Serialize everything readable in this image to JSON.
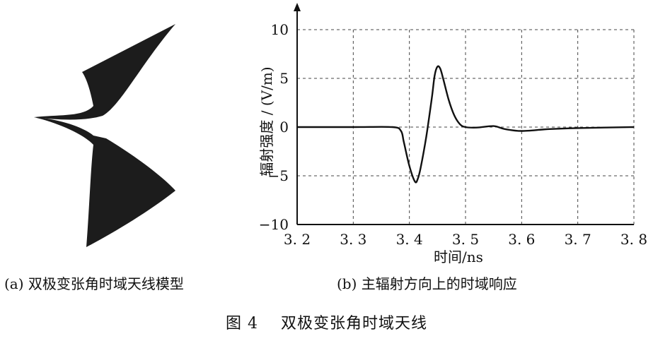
{
  "figure": {
    "number_label": "图 4",
    "title": "双极变张角时域天线",
    "panel_a_caption": "(a) 双极变张角时域天线模型",
    "panel_b_caption": "(b) 主辐射方向上的时域响应"
  },
  "chart_data": {
    "type": "line",
    "title": "",
    "xlabel": "时间/ns",
    "ylabel": "辐射强度 / (V/m)",
    "xlim": [
      3.2,
      3.8
    ],
    "ylim": [
      -10,
      10
    ],
    "grid": true,
    "x_ticks": [
      "3. 2",
      "3. 3",
      "3. 4",
      "3. 5",
      "3. 6",
      "3. 7",
      "3. 8"
    ],
    "x_tick_values": [
      3.2,
      3.3,
      3.4,
      3.5,
      3.6,
      3.7,
      3.8
    ],
    "y_ticks": [
      "10",
      "5",
      "0",
      "−5",
      "−10"
    ],
    "y_tick_values": [
      10,
      5,
      0,
      -5,
      -10
    ],
    "series": [
      {
        "x": [
          3.2,
          3.3,
          3.37,
          3.385,
          3.39,
          3.4,
          3.41,
          3.415,
          3.42,
          3.43,
          3.44,
          3.445,
          3.45,
          3.455,
          3.46,
          3.47,
          3.48,
          3.49,
          3.5,
          3.52,
          3.55,
          3.57,
          3.6,
          3.65,
          3.7,
          3.8
        ],
        "y": [
          0,
          0,
          0,
          -0.4,
          -1.5,
          -4.0,
          -5.6,
          -5.3,
          -4.2,
          -1.0,
          3.0,
          5.3,
          6.2,
          6.0,
          5.0,
          2.8,
          1.2,
          0.3,
          0.0,
          -0.05,
          0.1,
          -0.2,
          -0.4,
          -0.2,
          -0.1,
          0.0
        ]
      }
    ]
  },
  "antenna_model": {
    "fill_color": "#1c1c1c"
  }
}
